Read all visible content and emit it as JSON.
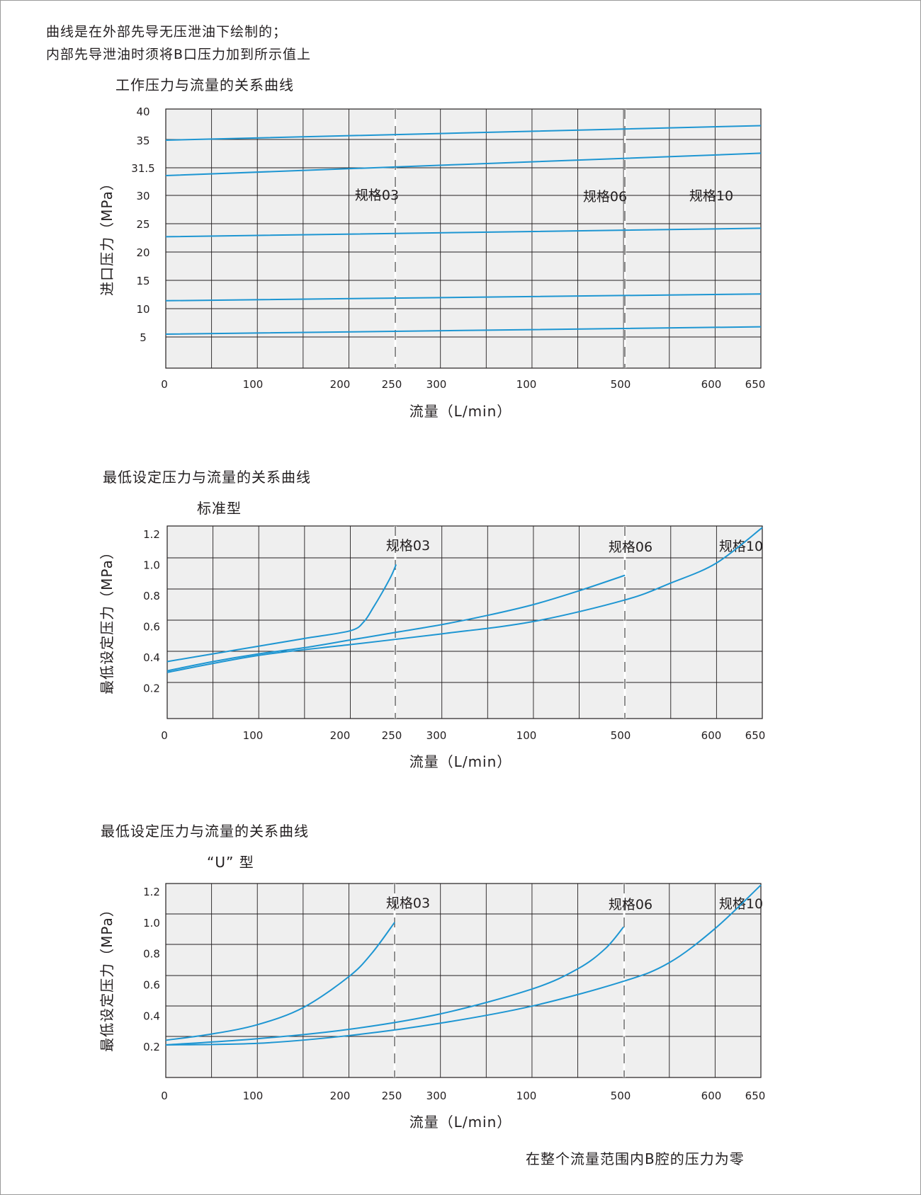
{
  "notes": [
    "曲线是在外部先导无压泄油下绘制的；",
    "内部先导泄油时须将B口压力加到所示值上"
  ],
  "footer": "在整个流量范围内B腔的压力为零",
  "colors": {
    "curve": "#1e96d2",
    "grid": "#231f20",
    "plot_bg": "#efefef"
  },
  "x_tick_labels": [
    "0",
    "100",
    "200",
    "250",
    "300",
    "100",
    "500",
    "600",
    "650"
  ],
  "chart_data": [
    {
      "type": "line",
      "title": "工作压力与流量的关系曲线",
      "xlabel": "流量（L/min）",
      "ylabel": "进口压力（MPa）",
      "xlim": [
        0,
        650
      ],
      "ylim": [
        0,
        40
      ],
      "y_tick_labels": [
        "40",
        "35",
        "31.5",
        "30",
        "25",
        "20",
        "15",
        "10",
        "5"
      ],
      "spec_labels": [
        "规格03",
        "规格06",
        "规格10"
      ],
      "spec_flows": [
        250,
        500,
        650
      ],
      "grid": true,
      "series": [
        {
          "x": [
            0,
            650
          ],
          "y": [
            35,
            37.5
          ]
        },
        {
          "x": [
            0,
            650
          ],
          "y": [
            31.2,
            33.5
          ]
        },
        {
          "x": [
            0,
            650
          ],
          "y": [
            22.7,
            24.2
          ]
        },
        {
          "x": [
            0,
            650
          ],
          "y": [
            11.4,
            12.6
          ]
        },
        {
          "x": [
            0,
            650
          ],
          "y": [
            5.5,
            6.8
          ]
        }
      ]
    },
    {
      "type": "line",
      "title": "最低设定压力与流量的关系曲线",
      "subtitle": "标准型",
      "xlabel": "流量（L/min）",
      "ylabel": "最低设定压力（MPa）",
      "xlim": [
        0,
        650
      ],
      "ylim": [
        0,
        1.25
      ],
      "y_tick_labels": [
        "1.2",
        "1.0",
        "0.8",
        "0.6",
        "0.4",
        "0.2"
      ],
      "y_tick_values": [
        1.2,
        1.0,
        0.8,
        0.6,
        0.4,
        0.2
      ],
      "spec_labels": [
        "规格03",
        "规格06",
        "规格10"
      ],
      "spec_flows": [
        250,
        500,
        650
      ],
      "grid": true,
      "series": [
        {
          "name": "规格03",
          "x": [
            0,
            50,
            100,
            150,
            200,
            215,
            225,
            235,
            245,
            250
          ],
          "y": [
            0.37,
            0.42,
            0.47,
            0.52,
            0.57,
            0.63,
            0.72,
            0.82,
            0.93,
            1.0
          ]
        },
        {
          "name": "规格06",
          "x": [
            0,
            50,
            100,
            150,
            200,
            250,
            300,
            350,
            400,
            450,
            500
          ],
          "y": [
            0.31,
            0.37,
            0.42,
            0.46,
            0.51,
            0.56,
            0.61,
            0.67,
            0.74,
            0.83,
            0.93
          ]
        },
        {
          "name": "规格10",
          "x": [
            0,
            100,
            200,
            300,
            400,
            500,
            550,
            600,
            650
          ],
          "y": [
            0.3,
            0.41,
            0.48,
            0.55,
            0.63,
            0.77,
            0.88,
            1.01,
            1.24
          ]
        }
      ]
    },
    {
      "type": "line",
      "title": "最低设定压力与流量的关系曲线",
      "subtitle": "“U” 型",
      "xlabel": "流量（L/min）",
      "ylabel": "最低设定压力（MPa）",
      "xlim": [
        0,
        650
      ],
      "ylim": [
        0,
        1.25
      ],
      "y_tick_labels": [
        "1.2",
        "1.0",
        "0.8",
        "0.6",
        "0.4",
        "0.2"
      ],
      "y_tick_values": [
        1.2,
        1.0,
        0.8,
        0.6,
        0.4,
        0.2
      ],
      "spec_labels": [
        "规格03",
        "规格06",
        "规格10"
      ],
      "spec_flows": [
        250,
        500,
        650
      ],
      "grid": true,
      "series": [
        {
          "name": "规格03",
          "x": [
            0,
            50,
            100,
            150,
            200,
            225,
            250
          ],
          "y": [
            0.24,
            0.28,
            0.34,
            0.45,
            0.65,
            0.8,
            1.0
          ]
        },
        {
          "name": "规格06",
          "x": [
            0,
            100,
            200,
            300,
            400,
            450,
            480,
            500
          ],
          "y": [
            0.21,
            0.25,
            0.31,
            0.41,
            0.57,
            0.7,
            0.83,
            0.97
          ]
        },
        {
          "name": "规格10",
          "x": [
            0,
            100,
            200,
            300,
            400,
            500,
            550,
            600,
            650
          ],
          "y": [
            0.21,
            0.22,
            0.27,
            0.35,
            0.46,
            0.62,
            0.74,
            0.96,
            1.24
          ]
        }
      ]
    }
  ]
}
